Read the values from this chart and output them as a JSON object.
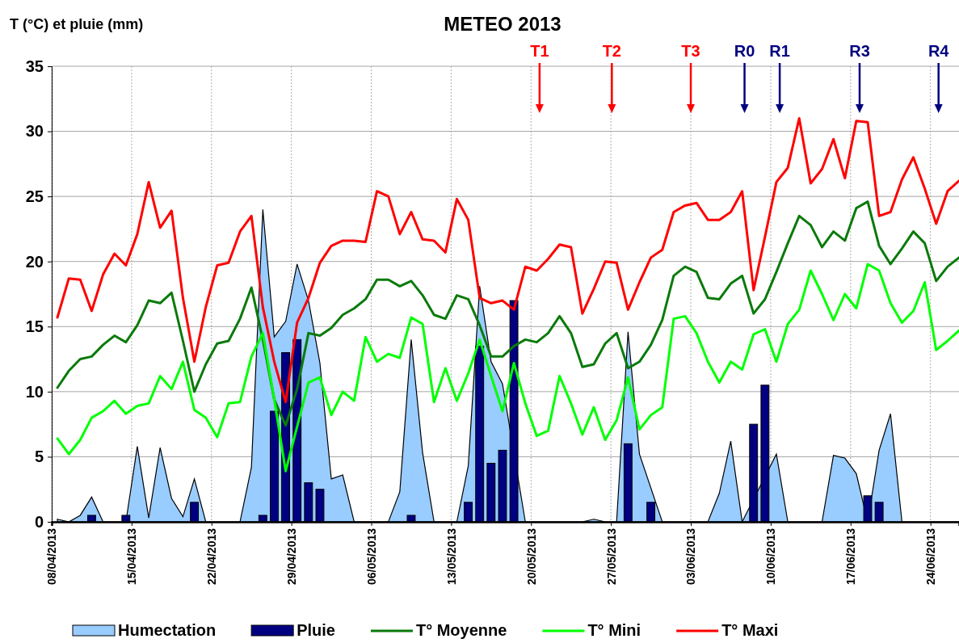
{
  "chart_data": {
    "type": "line",
    "title": "METEO 2013",
    "ylabel": "T (°C) et pluie (mm)",
    "x": [
      "2013-04-08T12:00",
      "2013-04-09T12:00",
      "2013-04-10T12:00",
      "2013-04-11T12:00",
      "2013-04-12T12:00",
      "2013-04-13T12:00",
      "2013-04-14T12:00",
      "2013-04-15T12:00",
      "2013-04-16T12:00",
      "2013-04-17T12:00",
      "2013-04-18T12:00",
      "2013-04-19T12:00",
      "2013-04-20T12:00",
      "2013-04-21T12:00",
      "2013-04-22T12:00",
      "2013-04-23T12:00",
      "2013-04-24T12:00",
      "2013-04-25T12:00",
      "2013-04-26T12:00",
      "2013-04-27T12:00",
      "2013-04-28T12:00",
      "2013-04-29T12:00",
      "2013-04-30T12:00",
      "2013-05-01T12:00",
      "2013-05-02T12:00",
      "2013-05-03T12:00",
      "2013-05-04T12:00",
      "2013-05-05T12:00",
      "2013-05-06T12:00",
      "2013-05-07T12:00",
      "2013-05-08T12:00",
      "2013-05-09T12:00",
      "2013-05-10T12:00",
      "2013-05-11T12:00",
      "2013-05-12T12:00",
      "2013-05-13T12:00",
      "2013-05-14T12:00",
      "2013-05-15T12:00",
      "2013-05-16T12:00",
      "2013-05-17T12:00",
      "2013-05-18T12:00",
      "2013-05-19T12:00",
      "2013-05-20T12:00",
      "2013-05-21T12:00",
      "2013-05-22T12:00",
      "2013-05-23T12:00",
      "2013-05-24T12:00",
      "2013-05-25T12:00",
      "2013-05-26T12:00",
      "2013-05-27T12:00",
      "2013-05-28T12:00",
      "2013-05-29T12:00",
      "2013-05-30T12:00",
      "2013-05-31T12:00",
      "2013-06-01T12:00",
      "2013-06-02T12:00",
      "2013-06-03T12:00",
      "2013-06-04T12:00",
      "2013-06-05T12:00",
      "2013-06-06T12:00",
      "2013-06-07T12:00",
      "2013-06-08T12:00",
      "2013-06-09T12:00",
      "2013-06-10T12:00",
      "2013-06-11T12:00",
      "2013-06-12T12:00",
      "2013-06-13T12:00",
      "2013-06-14T12:00",
      "2013-06-15T12:00",
      "2013-06-16T12:00",
      "2013-06-17T12:00",
      "2013-06-18T12:00",
      "2013-06-19T12:00",
      "2013-06-20T12:00",
      "2013-06-21T12:00",
      "2013-06-22T12:00",
      "2013-06-23T12:00",
      "2013-06-24T12:00",
      "2013-06-25T12:00",
      "2013-06-26T12:00"
    ],
    "series": [
      {
        "name": "Humectation",
        "type": "area",
        "color": "#99ccff",
        "values": [
          0.2,
          0,
          0.5,
          1.9,
          0,
          0,
          0,
          5.8,
          0.3,
          5.7,
          1.8,
          0.4,
          3.3,
          0,
          0,
          0,
          0,
          4.2,
          24.0,
          14.2,
          15.4,
          19.8,
          17.0,
          12.2,
          3.3,
          3.6,
          0,
          0,
          0,
          0,
          2.3,
          14.0,
          5.3,
          0,
          0,
          0,
          4.3,
          18.1,
          12.3,
          10.6,
          null,
          0,
          0,
          0,
          0,
          0,
          0,
          0.2,
          0,
          0,
          14.6,
          5.2,
          null,
          0,
          0,
          0,
          0,
          0,
          2.2,
          6.2,
          0,
          null,
          null,
          5.2,
          0,
          0,
          0,
          0,
          5.1,
          4.9,
          3.7,
          0,
          5.5,
          8.3,
          0,
          0,
          0,
          0,
          0,
          0
        ]
      },
      {
        "name": "Pluie",
        "type": "bar",
        "color": "#000080",
        "values": [
          null,
          null,
          null,
          0.5,
          null,
          null,
          0.5,
          null,
          null,
          null,
          null,
          null,
          1.5,
          null,
          null,
          null,
          null,
          null,
          0.5,
          8.5,
          13.0,
          14.0,
          3.0,
          2.5,
          null,
          null,
          null,
          null,
          null,
          null,
          null,
          0.5,
          null,
          null,
          null,
          null,
          1.5,
          13.5,
          4.5,
          5.5,
          17.0,
          null,
          null,
          null,
          null,
          null,
          null,
          null,
          null,
          null,
          6.0,
          null,
          1.5,
          null,
          null,
          null,
          null,
          null,
          null,
          null,
          null,
          7.5,
          10.5,
          null,
          null,
          null,
          null,
          null,
          null,
          null,
          null,
          2.0,
          1.5,
          null,
          null,
          null,
          null,
          null,
          null,
          null
        ]
      },
      {
        "name": "T° Moyenne",
        "color": "#0a7a0a",
        "values": [
          10.3,
          11.6,
          12.5,
          12.7,
          13.6,
          14.3,
          13.8,
          15.1,
          17.0,
          16.8,
          17.6,
          13.9,
          10.0,
          12.1,
          13.7,
          13.9,
          15.6,
          18.0,
          14.0,
          9.4,
          7.4,
          10.2,
          14.5,
          14.3,
          14.9,
          15.9,
          16.4,
          17.1,
          18.6,
          18.6,
          18.1,
          18.5,
          17.4,
          15.9,
          15.6,
          17.4,
          17.1,
          15.1,
          12.7,
          12.7,
          13.5,
          14.0,
          13.8,
          14.5,
          15.8,
          14.5,
          11.9,
          12.1,
          13.7,
          14.5,
          11.8,
          12.3,
          13.6,
          15.5,
          18.9,
          19.6,
          19.2,
          17.2,
          17.1,
          18.3,
          18.9,
          16.0,
          17.1,
          19.2,
          21.4,
          23.5,
          22.8,
          21.1,
          22.3,
          21.6,
          24.1,
          24.6,
          21.2,
          19.8,
          21.0,
          22.3,
          21.4,
          18.5,
          19.6,
          20.3
        ]
      },
      {
        "name": "T° Mini",
        "color": "#00ff00",
        "values": [
          6.4,
          5.2,
          6.3,
          8.0,
          8.5,
          9.3,
          8.3,
          8.9,
          9.1,
          11.2,
          10.2,
          12.3,
          8.6,
          8.0,
          6.5,
          9.1,
          9.2,
          12.7,
          14.5,
          9.4,
          3.9,
          7.3,
          10.7,
          11.1,
          8.2,
          10.0,
          9.3,
          14.2,
          12.3,
          12.9,
          12.6,
          15.7,
          15.2,
          9.2,
          11.8,
          9.3,
          11.4,
          14.0,
          11.2,
          8.5,
          12.2,
          9.1,
          6.6,
          7.0,
          11.2,
          9.1,
          6.7,
          8.8,
          6.3,
          7.8,
          11.1,
          7.1,
          8.2,
          8.8,
          15.6,
          15.8,
          14.5,
          12.3,
          10.7,
          12.3,
          11.7,
          14.4,
          14.8,
          12.3,
          15.2,
          16.3,
          19.3,
          17.5,
          15.5,
          17.5,
          16.4,
          19.8,
          19.3,
          16.8,
          15.3,
          16.2,
          18.4,
          13.2,
          13.9,
          14.7
        ]
      },
      {
        "name": "T° Maxi",
        "color": "#ff0000",
        "values": [
          15.7,
          18.7,
          18.6,
          16.2,
          19.0,
          20.6,
          19.7,
          22.1,
          26.1,
          22.6,
          23.9,
          17.2,
          12.3,
          16.5,
          19.7,
          19.9,
          22.3,
          23.5,
          16.5,
          12.3,
          9.2,
          15.3,
          17.2,
          19.9,
          21.2,
          21.6,
          21.6,
          21.5,
          25.4,
          25.0,
          22.1,
          23.8,
          21.7,
          21.6,
          20.7,
          24.8,
          23.2,
          17.2,
          16.8,
          17.0,
          16.3,
          19.6,
          19.3,
          20.2,
          21.3,
          21.1,
          16.0,
          17.9,
          20.0,
          19.9,
          16.3,
          18.4,
          20.3,
          20.9,
          23.8,
          24.3,
          24.5,
          23.2,
          23.2,
          23.8,
          25.4,
          17.8,
          21.9,
          26.1,
          27.2,
          31.0,
          26.0,
          27.1,
          29.4,
          26.4,
          30.8,
          30.7,
          23.5,
          23.8,
          26.3,
          28.0,
          25.6,
          22.9,
          25.4,
          26.2
        ]
      }
    ],
    "xlim": [
      "2013-04-08",
      "2013-06-26T12:00"
    ],
    "xticks": [
      {
        "value": "2013-04-08",
        "label": "08/04/2013"
      },
      {
        "value": "2013-04-15",
        "label": "15/04/2013"
      },
      {
        "value": "2013-04-22",
        "label": "22/04/2013"
      },
      {
        "value": "2013-04-29",
        "label": "29/04/2013"
      },
      {
        "value": "2013-05-06",
        "label": "06/05/2013"
      },
      {
        "value": "2013-05-13",
        "label": "13/05/2013"
      },
      {
        "value": "2013-05-20",
        "label": "20/05/2013"
      },
      {
        "value": "2013-05-27",
        "label": "27/05/2013"
      },
      {
        "value": "2013-06-03",
        "label": "03/06/2013"
      },
      {
        "value": "2013-06-10",
        "label": "10/06/2013"
      },
      {
        "value": "2013-06-17",
        "label": "17/06/2013"
      },
      {
        "value": "2013-06-24",
        "label": "24/06/2013"
      }
    ],
    "ylim": [
      0,
      35
    ],
    "yticks": [
      0,
      5,
      10,
      15,
      20,
      25,
      30,
      35
    ],
    "grid": true,
    "legend": "bottom",
    "line_style": "solid",
    "ref_lines": [
      {
        "axis": "x",
        "value": "2013-05-20T18:00",
        "label": "T1",
        "color": "#ff0000"
      },
      {
        "axis": "x",
        "value": "2013-05-27T02:00",
        "label": "T2",
        "color": "#ff0000"
      },
      {
        "axis": "x",
        "value": "2013-06-03T00:00",
        "label": "T3",
        "color": "#ff0000"
      },
      {
        "axis": "x",
        "value": "2013-06-07T17:00",
        "label": "R0",
        "color": "#000080"
      },
      {
        "axis": "x",
        "value": "2013-06-10T19:00",
        "label": "R1",
        "color": "#000080"
      },
      {
        "axis": "x",
        "value": "2013-06-17T19:00",
        "label": "R3",
        "color": "#000080"
      },
      {
        "axis": "x",
        "value": "2013-06-24T17:00",
        "label": "R4",
        "color": "#000080"
      }
    ]
  }
}
